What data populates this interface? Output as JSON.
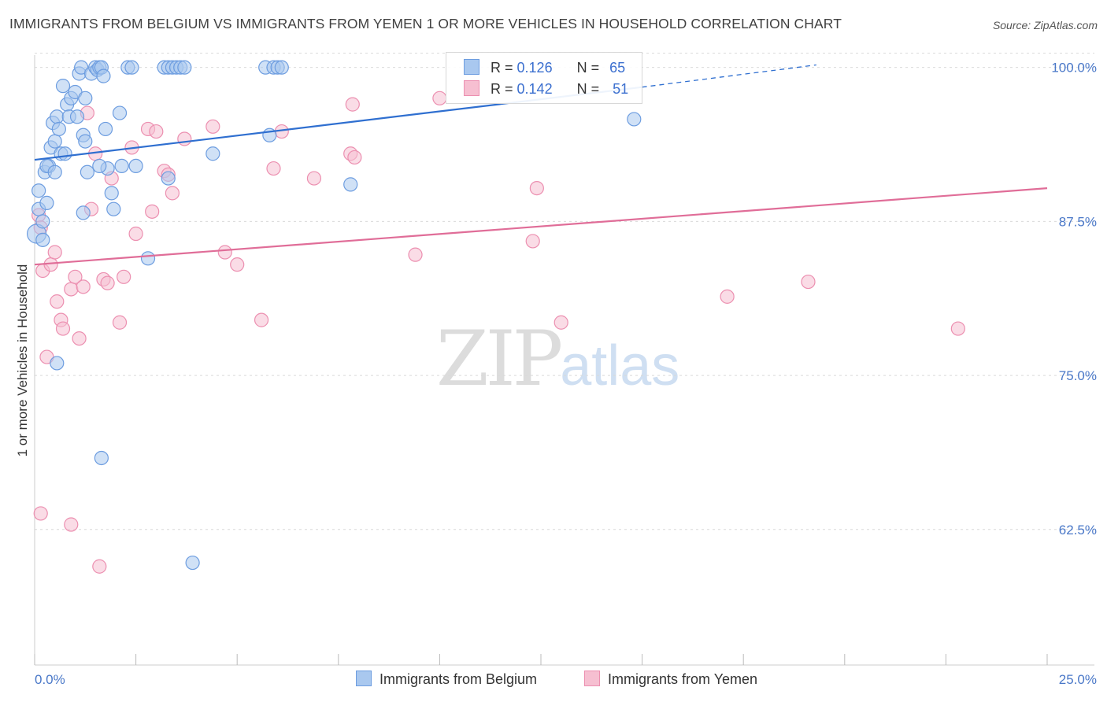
{
  "title": "IMMIGRANTS FROM BELGIUM VS IMMIGRANTS FROM YEMEN 1 OR MORE VEHICLES IN HOUSEHOLD CORRELATION CHART",
  "source": "Source: ZipAtlas.com",
  "watermark": {
    "zip": "ZIP",
    "atlas": "atlas"
  },
  "legend": {
    "belgium": {
      "r_label": "R =",
      "r_value": "0.126",
      "n_label": "N =",
      "n_value": "65"
    },
    "yemen": {
      "r_label": "R =",
      "r_value": "0.142",
      "n_label": "N =",
      "n_value": "51"
    }
  },
  "colors": {
    "belgium_fill": "#a9c8ef",
    "belgium_stroke": "#6d9de0",
    "belgium_line": "#2f6fd0",
    "yemen_fill": "#f6bfd1",
    "yemen_stroke": "#ec8fb0",
    "yemen_line": "#e06d98",
    "tick_text": "#4a78c8",
    "grid": "#d9d9d9"
  },
  "chart_data": {
    "type": "scatter",
    "title": "IMMIGRANTS FROM BELGIUM VS IMMIGRANTS FROM YEMEN 1 OR MORE VEHICLES IN HOUSEHOLD CORRELATION CHART",
    "xlabel": "",
    "ylabel": "1 or more Vehicles in Household",
    "xlim": [
      0,
      25
    ],
    "ylim": [
      51.5,
      101
    ],
    "x_tick_labels": [
      "0.0%",
      "25.0%"
    ],
    "y_ticks": [
      62.5,
      75.0,
      87.5,
      100.0
    ],
    "y_tick_labels": [
      "62.5%",
      "75.0%",
      "87.5%",
      "100.0%"
    ],
    "grid": true,
    "legend_position": "top-center",
    "series": [
      {
        "name": "Immigrants from Belgium",
        "trend": {
          "x": [
            0,
            15
          ],
          "y": [
            92.5,
            98.4
          ],
          "dashed_to": [
            19.3,
            100.2
          ]
        },
        "points": [
          [
            0.05,
            86.5
          ],
          [
            0.1,
            88.5
          ],
          [
            0.2,
            87.5
          ],
          [
            0.1,
            90.0
          ],
          [
            0.2,
            86.0
          ],
          [
            0.25,
            91.5
          ],
          [
            0.3,
            89.0
          ],
          [
            0.35,
            92.0
          ],
          [
            0.4,
            93.5
          ],
          [
            0.45,
            95.5
          ],
          [
            0.5,
            94.0
          ],
          [
            0.55,
            96.0
          ],
          [
            0.6,
            95.0
          ],
          [
            0.65,
            93.0
          ],
          [
            0.7,
            98.5
          ],
          [
            0.8,
            97.0
          ],
          [
            0.85,
            96.0
          ],
          [
            0.9,
            97.5
          ],
          [
            1.0,
            98.0
          ],
          [
            1.05,
            96.0
          ],
          [
            1.1,
            99.5
          ],
          [
            1.15,
            100.0
          ],
          [
            1.2,
            94.5
          ],
          [
            1.25,
            97.5
          ],
          [
            1.3,
            91.5
          ],
          [
            1.4,
            99.5
          ],
          [
            1.5,
            100.0
          ],
          [
            1.55,
            99.8
          ],
          [
            1.6,
            100.0
          ],
          [
            1.65,
            100.0
          ],
          [
            1.7,
            99.3
          ],
          [
            1.75,
            95.0
          ],
          [
            1.8,
            91.8
          ],
          [
            1.9,
            89.8
          ],
          [
            1.95,
            88.5
          ],
          [
            2.1,
            96.3
          ],
          [
            2.15,
            92.0
          ],
          [
            2.3,
            100.0
          ],
          [
            2.4,
            100.0
          ],
          [
            3.2,
            100.0
          ],
          [
            3.3,
            100.0
          ],
          [
            3.4,
            100.0
          ],
          [
            3.5,
            100.0
          ],
          [
            3.6,
            100.0
          ],
          [
            3.7,
            100.0
          ],
          [
            4.4,
            93.0
          ],
          [
            5.7,
            100.0
          ],
          [
            5.8,
            94.5
          ],
          [
            5.9,
            100.0
          ],
          [
            6.0,
            100.0
          ],
          [
            6.1,
            100.0
          ],
          [
            7.8,
            90.5
          ],
          [
            14.8,
            95.8
          ],
          [
            0.55,
            76.0
          ],
          [
            1.65,
            68.3
          ],
          [
            3.9,
            59.8
          ],
          [
            2.8,
            84.5
          ],
          [
            2.5,
            92.0
          ],
          [
            0.3,
            92.0
          ],
          [
            0.5,
            91.5
          ],
          [
            1.6,
            92.0
          ],
          [
            1.25,
            94.0
          ],
          [
            0.75,
            93.0
          ],
          [
            1.2,
            88.2
          ],
          [
            3.3,
            91.0
          ]
        ]
      },
      {
        "name": "Immigrants from Yemen",
        "trend": {
          "x": [
            0,
            25
          ],
          "y": [
            84.0,
            90.2
          ]
        },
        "points": [
          [
            0.1,
            88.0
          ],
          [
            0.15,
            87.0
          ],
          [
            0.2,
            83.5
          ],
          [
            0.3,
            76.5
          ],
          [
            0.4,
            84.0
          ],
          [
            0.5,
            85.0
          ],
          [
            0.55,
            81.0
          ],
          [
            0.65,
            79.5
          ],
          [
            0.7,
            78.8
          ],
          [
            0.9,
            82.0
          ],
          [
            1.0,
            83.0
          ],
          [
            1.1,
            78.0
          ],
          [
            1.2,
            82.2
          ],
          [
            1.3,
            96.3
          ],
          [
            1.4,
            88.5
          ],
          [
            1.5,
            93.0
          ],
          [
            1.7,
            82.8
          ],
          [
            1.8,
            82.5
          ],
          [
            1.9,
            91.0
          ],
          [
            2.1,
            79.3
          ],
          [
            2.2,
            83.0
          ],
          [
            2.4,
            93.5
          ],
          [
            2.5,
            86.5
          ],
          [
            2.8,
            95.0
          ],
          [
            2.9,
            88.3
          ],
          [
            3.0,
            94.8
          ],
          [
            3.2,
            91.6
          ],
          [
            3.3,
            91.3
          ],
          [
            3.4,
            89.8
          ],
          [
            3.7,
            94.2
          ],
          [
            4.4,
            95.2
          ],
          [
            4.7,
            85.0
          ],
          [
            5.0,
            84.0
          ],
          [
            5.6,
            79.5
          ],
          [
            5.9,
            91.8
          ],
          [
            6.1,
            94.8
          ],
          [
            6.9,
            91.0
          ],
          [
            7.8,
            93.0
          ],
          [
            7.85,
            97.0
          ],
          [
            7.9,
            92.7
          ],
          [
            9.4,
            84.8
          ],
          [
            10.0,
            97.5
          ],
          [
            12.3,
            85.9
          ],
          [
            12.4,
            90.2
          ],
          [
            13.0,
            79.3
          ],
          [
            17.1,
            81.4
          ],
          [
            19.1,
            82.6
          ],
          [
            22.8,
            78.8
          ],
          [
            0.15,
            63.8
          ],
          [
            0.9,
            62.9
          ],
          [
            1.6,
            59.5
          ]
        ]
      }
    ]
  },
  "bottom_legend": {
    "belgium_label": "Immigrants from Belgium",
    "yemen_label": "Immigrants from Yemen"
  }
}
